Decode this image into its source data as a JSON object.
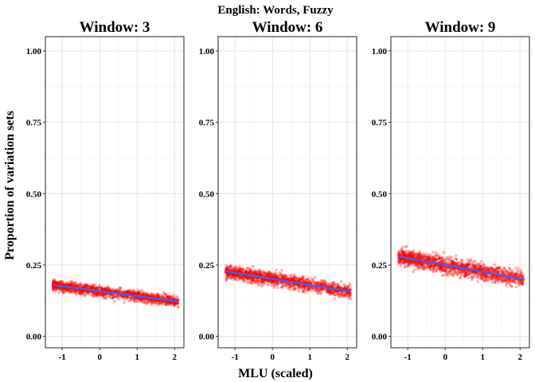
{
  "chart_data": {
    "type": "scatter",
    "title": "English: Words, Fuzzy",
    "xlabel": "MLU (scaled)",
    "ylabel": "Proportion of variation sets",
    "xlim": [
      -1.45,
      2.25
    ],
    "ylim": [
      -0.04,
      1.05
    ],
    "xticks": [
      -1,
      0,
      1,
      2
    ],
    "xtick_labels": [
      "-1",
      "0",
      "1",
      "2"
    ],
    "yticks": [
      0.0,
      0.25,
      0.5,
      0.75,
      1.0
    ],
    "ytick_labels": [
      "0.00",
      "0.25",
      "0.50",
      "0.75",
      "1.00"
    ],
    "grid": true,
    "point_color": "#ff0000",
    "line_color": "#3366ff",
    "panels": [
      {
        "title": "Window: 3",
        "x_range": [
          -1.25,
          2.1
        ],
        "fit": {
          "x": [
            -1.25,
            2.1
          ],
          "y": [
            0.18,
            0.122
          ]
        },
        "spread": 0.013
      },
      {
        "title": "Window: 6",
        "x_range": [
          -1.25,
          2.1
        ],
        "fit": {
          "x": [
            -1.25,
            2.1
          ],
          "y": [
            0.228,
            0.157
          ]
        },
        "spread": 0.016
      },
      {
        "title": "Window: 9",
        "x_range": [
          -1.25,
          2.1
        ],
        "fit": {
          "x": [
            -1.25,
            2.1
          ],
          "y": [
            0.28,
            0.2
          ]
        },
        "spread": 0.02
      }
    ]
  }
}
